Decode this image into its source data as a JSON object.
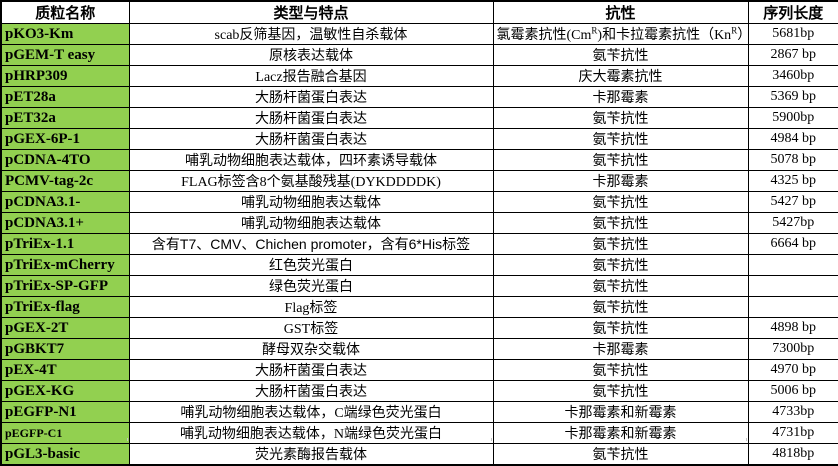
{
  "colors": {
    "name_column_fill": "#92d050",
    "grid_border": "#000000",
    "background": "#ffffff",
    "faint_gridline": "#c6c6c6"
  },
  "table": {
    "headers": [
      "质粒名称",
      "类型与特点",
      "抗性",
      "序列长度"
    ],
    "rows": [
      {
        "name": "pKO3-Km",
        "type": "scab反筛基因，温敏性自杀载体",
        "resistance": [
          {
            "t": "氯霉素抗性(Cm"
          },
          {
            "sup": "R"
          },
          {
            "t": ")和卡拉霉素抗性（Kn"
          },
          {
            "sup": "R"
          },
          {
            "t": "）"
          }
        ],
        "length": "5681bp"
      },
      {
        "name": "pGEM-T easy",
        "type": "原核表达载体",
        "resistance": "氨苄抗性",
        "length": "2867 bp"
      },
      {
        "name": "pHRP309",
        "type": "Lacz报告融合基因",
        "resistance": "庆大霉素抗性",
        "length": "3460bp"
      },
      {
        "name": "pET28a",
        "type": "大肠杆菌蛋白表达",
        "resistance": "卡那霉素",
        "length": "5369 bp"
      },
      {
        "name": "pET32a",
        "type": "大肠杆菌蛋白表达",
        "resistance": "氨苄抗性",
        "length": "5900bp"
      },
      {
        "name": "pGEX-6P-1",
        "type": "大肠杆菌蛋白表达",
        "resistance": "氨苄抗性",
        "length": "4984 bp"
      },
      {
        "name": "pCDNA-4TO",
        "type": "哺乳动物细胞表达载体，四环素诱导载体",
        "resistance": "氨苄抗性",
        "length": "5078 bp"
      },
      {
        "name": "PCMV-tag-2c",
        "type": "FLAG标签含8个氨基酸残基(DYKDDDDK)",
        "resistance": "卡那霉素",
        "length": "4325 bp"
      },
      {
        "name": "pCDNA3.1-",
        "type": "哺乳动物细胞表达载体",
        "resistance": "氨苄抗性",
        "length": "5427 bp"
      },
      {
        "name": "pCDNA3.1+",
        "type": "哺乳动物细胞表达载体",
        "resistance": "氨苄抗性",
        "length": "5427bp"
      },
      {
        "name": "pTriEx-1.1",
        "type": "含有T7、CMV、Chichen promoter，含有6*His标签",
        "type_sans": true,
        "resistance": "氨苄抗性",
        "length": "6664 bp"
      },
      {
        "name": "pTriEx-mCherry",
        "type": "红色荧光蛋白",
        "resistance": "氨苄抗性",
        "length": ""
      },
      {
        "name": "pTriEx-SP-GFP",
        "type": "绿色荧光蛋白",
        "resistance": "氨苄抗性",
        "length": ""
      },
      {
        "name": "pTriEx-flag",
        "type": "Flag标签",
        "resistance": "氨苄抗性",
        "length": ""
      },
      {
        "name": "pGEX-2T",
        "type": "GST标签",
        "resistance": "氨苄抗性",
        "length": "4898 bp"
      },
      {
        "name": "pGBKT7",
        "type": "酵母双杂交载体",
        "resistance": "卡那霉素",
        "length": "7300bp"
      },
      {
        "name": "pEX-4T",
        "type": "大肠杆菌蛋白表达",
        "resistance": "氨苄抗性",
        "length": "4970 bp"
      },
      {
        "name": "pGEX-KG",
        "type": "大肠杆菌蛋白表达",
        "resistance": "氨苄抗性",
        "length": "5006 bp"
      },
      {
        "name": "pEGFP-N1",
        "type": "哺乳动物细胞表达载体，C端绿色荧光蛋白",
        "resistance": "卡那霉素和新霉素",
        "length": "4733bp"
      },
      {
        "name": "pEGFP-C1",
        "name_small": true,
        "type": "哺乳动物细胞表达载体，N端绿色荧光蛋白",
        "resistance": "卡那霉素和新霉素",
        "length": "4731bp"
      },
      {
        "name": "pGL3-basic",
        "type": "荧光素酶报告载体",
        "resistance": "氨苄抗性",
        "length": "4818bp"
      }
    ]
  }
}
